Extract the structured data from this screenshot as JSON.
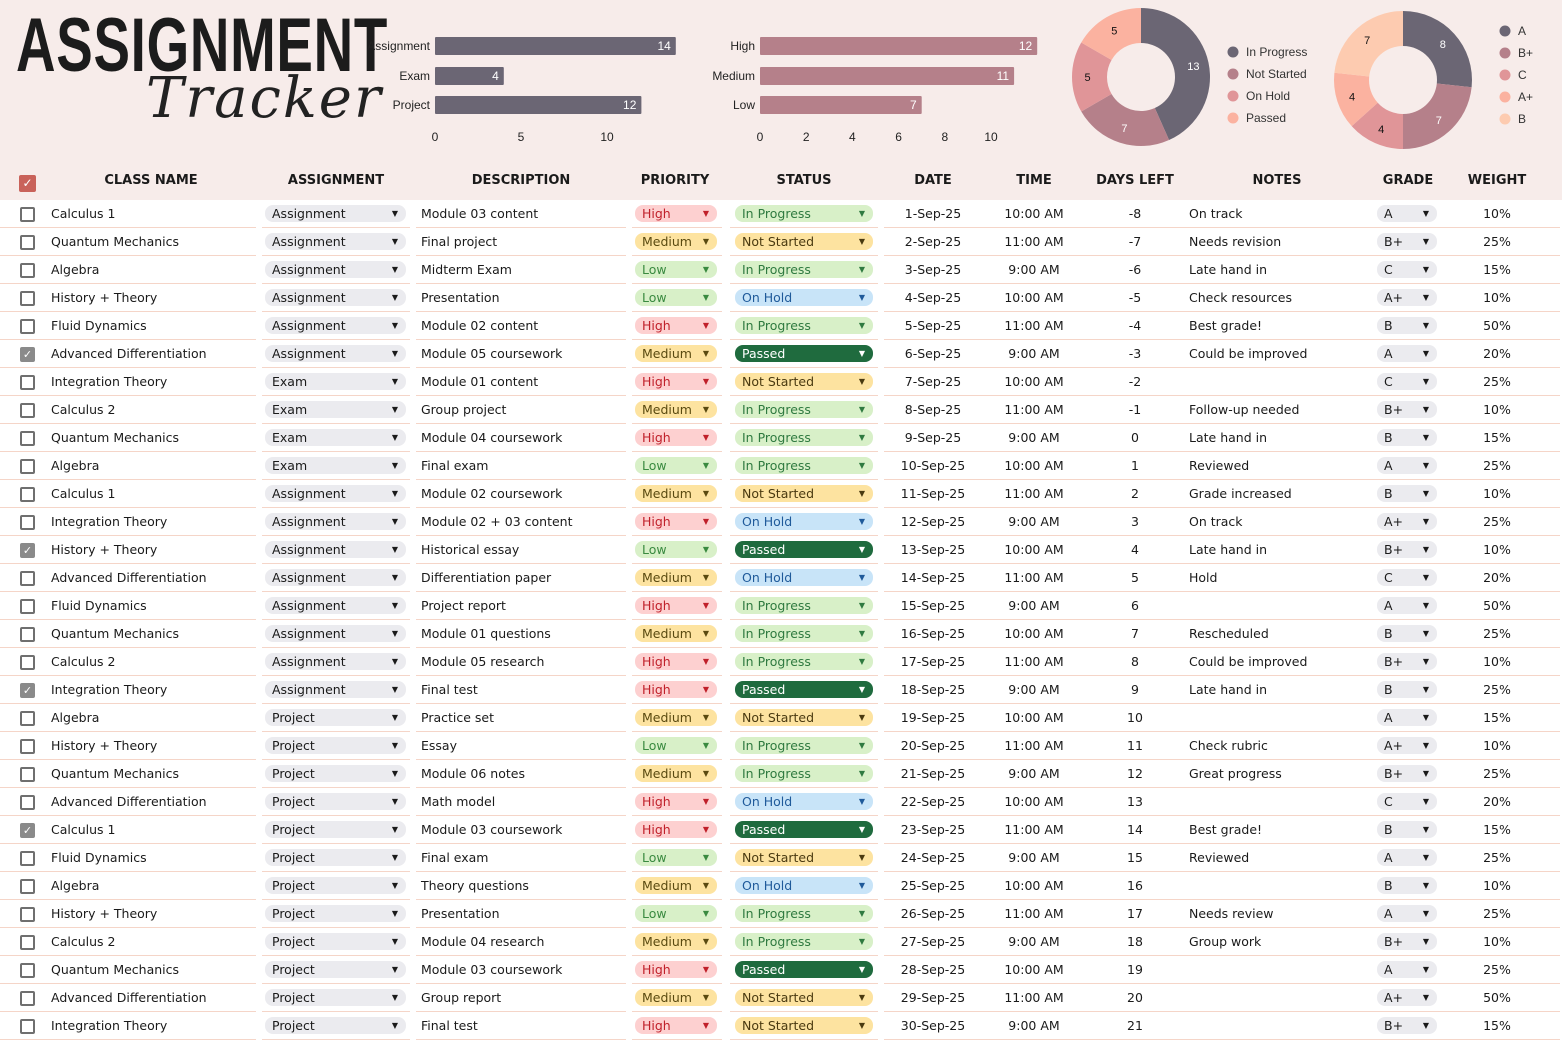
{
  "title": {
    "line1": "ASSIGNMENT",
    "line2": "Tracker"
  },
  "colors": {
    "dark": "#6b6674",
    "mauve": "#b5808a",
    "pink": "#e09598",
    "salmon": "#fbb2a0",
    "peach": "#fdcbb0"
  },
  "chart_data": [
    {
      "type": "bar",
      "orientation": "horizontal",
      "categories": [
        "Assignment",
        "Exam",
        "Project"
      ],
      "values": [
        14,
        4,
        12
      ],
      "xticks": [
        0,
        5,
        10
      ],
      "xlim": [
        0,
        14
      ],
      "color": "#6b6674"
    },
    {
      "type": "bar",
      "orientation": "horizontal",
      "categories": [
        "High",
        "Medium",
        "Low"
      ],
      "values": [
        12,
        11,
        7
      ],
      "xticks": [
        0,
        2,
        4,
        6,
        8,
        10
      ],
      "xlim": [
        0,
        12
      ],
      "color": "#b5808a"
    },
    {
      "type": "pie",
      "donut": true,
      "categories": [
        "In Progress",
        "Not Started",
        "On Hold",
        "Passed"
      ],
      "values": [
        13,
        7,
        5,
        5
      ],
      "colors": [
        "#6b6674",
        "#b5808a",
        "#e09598",
        "#fbb2a0"
      ],
      "legend": "right"
    },
    {
      "type": "pie",
      "donut": true,
      "categories": [
        "A",
        "B+",
        "C",
        "A+",
        "B"
      ],
      "values": [
        8,
        7,
        4,
        4,
        7
      ],
      "colors": [
        "#6b6674",
        "#b5808a",
        "#e09598",
        "#fbb2a0",
        "#fdcbb0"
      ],
      "legend": "right"
    }
  ],
  "headers": [
    "CLASS NAME",
    "ASSIGNMENT",
    "DESCRIPTION",
    "PRIORITY",
    "STATUS",
    "DATE",
    "TIME",
    "DAYS LEFT",
    "NOTES",
    "GRADE",
    "WEIGHT"
  ],
  "rows": [
    [
      false,
      "Calculus 1",
      "Assignment",
      "Module 03 content",
      "High",
      "In Progress",
      "1-Sep-25",
      "10:00 AM",
      "-8",
      "On track",
      "A",
      "10%"
    ],
    [
      false,
      "Quantum Mechanics",
      "Assignment",
      "Final project",
      "Medium",
      "Not Started",
      "2-Sep-25",
      "11:00 AM",
      "-7",
      "Needs revision",
      "B+",
      "25%"
    ],
    [
      false,
      "Algebra",
      "Assignment",
      "Midterm Exam",
      "Low",
      "In Progress",
      "3-Sep-25",
      "9:00 AM",
      "-6",
      "Late hand in",
      "C",
      "15%"
    ],
    [
      false,
      "History + Theory",
      "Assignment",
      "Presentation",
      "Low",
      "On Hold",
      "4-Sep-25",
      "10:00 AM",
      "-5",
      "Check resources",
      "A+",
      "10%"
    ],
    [
      false,
      "Fluid Dynamics",
      "Assignment",
      "Module 02 content",
      "High",
      "In Progress",
      "5-Sep-25",
      "11:00 AM",
      "-4",
      "Best grade!",
      "B",
      "50%"
    ],
    [
      true,
      "Advanced Differentiation",
      "Assignment",
      "Module 05 coursework",
      "Medium",
      "Passed",
      "6-Sep-25",
      "9:00 AM",
      "-3",
      "Could be improved",
      "A",
      "20%"
    ],
    [
      false,
      "Integration Theory",
      "Exam",
      "Module 01 content",
      "High",
      "Not Started",
      "7-Sep-25",
      "10:00 AM",
      "-2",
      "",
      "C",
      "25%"
    ],
    [
      false,
      "Calculus 2",
      "Exam",
      "Group project",
      "Medium",
      "In Progress",
      "8-Sep-25",
      "11:00 AM",
      "-1",
      "Follow-up needed",
      "B+",
      "10%"
    ],
    [
      false,
      "Quantum Mechanics",
      "Exam",
      "Module 04 coursework",
      "High",
      "In Progress",
      "9-Sep-25",
      "9:00 AM",
      "0",
      "Late hand in",
      "B",
      "15%"
    ],
    [
      false,
      "Algebra",
      "Exam",
      "Final exam",
      "Low",
      "In Progress",
      "10-Sep-25",
      "10:00 AM",
      "1",
      "Reviewed",
      "A",
      "25%"
    ],
    [
      false,
      "Calculus 1",
      "Assignment",
      "Module 02 coursework",
      "Medium",
      "Not Started",
      "11-Sep-25",
      "11:00 AM",
      "2",
      "Grade increased",
      "B",
      "10%"
    ],
    [
      false,
      "Integration Theory",
      "Assignment",
      "Module 02 + 03 content",
      "High",
      "On Hold",
      "12-Sep-25",
      "9:00 AM",
      "3",
      "On track",
      "A+",
      "25%"
    ],
    [
      true,
      "History + Theory",
      "Assignment",
      "Historical essay",
      "Low",
      "Passed",
      "13-Sep-25",
      "10:00 AM",
      "4",
      "Late hand in",
      "B+",
      "10%"
    ],
    [
      false,
      "Advanced Differentiation",
      "Assignment",
      "Differentiation paper",
      "Medium",
      "On Hold",
      "14-Sep-25",
      "11:00 AM",
      "5",
      "Hold",
      "C",
      "20%"
    ],
    [
      false,
      "Fluid Dynamics",
      "Assignment",
      "Project report",
      "High",
      "In Progress",
      "15-Sep-25",
      "9:00 AM",
      "6",
      "",
      "A",
      "50%"
    ],
    [
      false,
      "Quantum Mechanics",
      "Assignment",
      "Module 01 questions",
      "Medium",
      "In Progress",
      "16-Sep-25",
      "10:00 AM",
      "7",
      "Rescheduled",
      "B",
      "25%"
    ],
    [
      false,
      "Calculus 2",
      "Assignment",
      "Module 05 research",
      "High",
      "In Progress",
      "17-Sep-25",
      "11:00 AM",
      "8",
      "Could be improved",
      "B+",
      "10%"
    ],
    [
      true,
      "Integration Theory",
      "Assignment",
      "Final test",
      "High",
      "Passed",
      "18-Sep-25",
      "9:00 AM",
      "9",
      "Late hand in",
      "B",
      "25%"
    ],
    [
      false,
      "Algebra",
      "Project",
      "Practice set",
      "Medium",
      "Not Started",
      "19-Sep-25",
      "10:00 AM",
      "10",
      "",
      "A",
      "15%"
    ],
    [
      false,
      "History + Theory",
      "Project",
      "Essay",
      "Low",
      "In Progress",
      "20-Sep-25",
      "11:00 AM",
      "11",
      "Check rubric",
      "A+",
      "10%"
    ],
    [
      false,
      "Quantum Mechanics",
      "Project",
      "Module 06 notes",
      "Medium",
      "In Progress",
      "21-Sep-25",
      "9:00 AM",
      "12",
      "Great progress",
      "B+",
      "25%"
    ],
    [
      false,
      "Advanced Differentiation",
      "Project",
      "Math model",
      "High",
      "On Hold",
      "22-Sep-25",
      "10:00 AM",
      "13",
      "",
      "C",
      "20%"
    ],
    [
      true,
      "Calculus 1",
      "Project",
      "Module 03 coursework",
      "High",
      "Passed",
      "23-Sep-25",
      "11:00 AM",
      "14",
      "Best grade!",
      "B",
      "15%"
    ],
    [
      false,
      "Fluid Dynamics",
      "Project",
      "Final exam",
      "Low",
      "Not Started",
      "24-Sep-25",
      "9:00 AM",
      "15",
      "Reviewed",
      "A",
      "25%"
    ],
    [
      false,
      "Algebra",
      "Project",
      "Theory questions",
      "Medium",
      "On Hold",
      "25-Sep-25",
      "10:00 AM",
      "16",
      "",
      "B",
      "10%"
    ],
    [
      false,
      "History + Theory",
      "Project",
      "Presentation",
      "Low",
      "In Progress",
      "26-Sep-25",
      "11:00 AM",
      "17",
      "Needs review",
      "A",
      "25%"
    ],
    [
      false,
      "Calculus 2",
      "Project",
      "Module 04 research",
      "Medium",
      "In Progress",
      "27-Sep-25",
      "9:00 AM",
      "18",
      "Group work",
      "B+",
      "10%"
    ],
    [
      false,
      "Quantum Mechanics",
      "Project",
      "Module 03 coursework",
      "High",
      "Passed",
      "28-Sep-25",
      "10:00 AM",
      "19",
      "",
      "A",
      "25%"
    ],
    [
      false,
      "Advanced Differentiation",
      "Project",
      "Group report",
      "Medium",
      "Not Started",
      "29-Sep-25",
      "11:00 AM",
      "20",
      "",
      "A+",
      "50%"
    ],
    [
      false,
      "Integration Theory",
      "Project",
      "Final test",
      "High",
      "Not Started",
      "30-Sep-25",
      "9:00 AM",
      "21",
      "",
      "B+",
      "15%"
    ]
  ],
  "priority_styles": {
    "High": [
      "#fdd0d0",
      "#c0202a"
    ],
    "Medium": [
      "#fde3a0",
      "#5a4a10"
    ],
    "Low": [
      "#d8f0c8",
      "#3a8a40"
    ]
  },
  "status_styles": {
    "In Progress": [
      "#d8f0c8",
      "#2f7a40"
    ],
    "Not Started": [
      "#fde3a0",
      "#4a3a10"
    ],
    "On Hold": [
      "#c8e4f8",
      "#1f5a9a"
    ],
    "Passed": [
      "#1f6b3e",
      "#ffffff"
    ]
  }
}
